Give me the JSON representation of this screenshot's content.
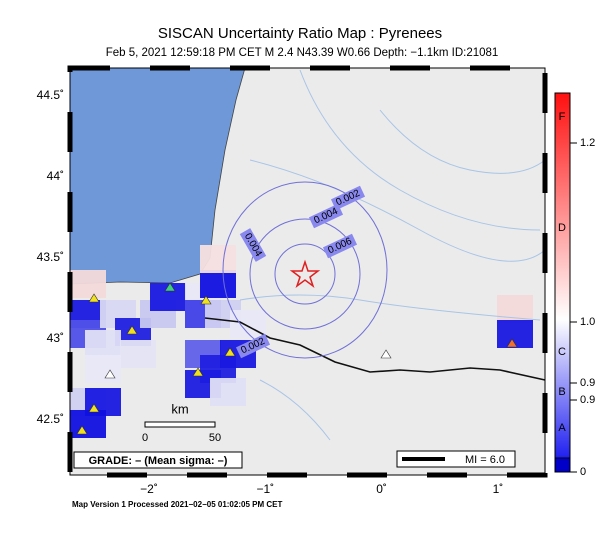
{
  "header": {
    "title": "SISCAN Uncertainty Ratio Map : Pyrenees",
    "subtitle": "Feb  5, 2021 12:59:18 PM CET   M 2.4   N43.39 W0.66   Depth: −1.1km   ID:21081"
  },
  "map": {
    "lat_ticks": [
      {
        "value": 44.5,
        "label": "44.5˚"
      },
      {
        "value": 44,
        "label": "44˚"
      },
      {
        "value": 43.5,
        "label": "43.5˚"
      },
      {
        "value": 43,
        "label": "43˚"
      },
      {
        "value": 42.5,
        "label": "42.5˚"
      }
    ],
    "lon_ticks": [
      {
        "value": -2,
        "label": "−2˚"
      },
      {
        "value": -1,
        "label": "−1˚"
      },
      {
        "value": 0,
        "label": "0˚"
      },
      {
        "value": 1,
        "label": "1˚"
      }
    ],
    "contour_labels": [
      "0.002",
      "0.004",
      "0.006",
      "0.004",
      "0.002"
    ],
    "scale": {
      "unit": "km",
      "start": "0",
      "end": "50"
    },
    "grade": "GRADE: – (Mean sigma: –)",
    "mi": "MI = 6.0"
  },
  "colorbar": {
    "grades": [
      "F",
      "D",
      "C",
      "B",
      "A"
    ],
    "values": [
      "1.2",
      "1.0",
      "0.9",
      "0.9",
      "0"
    ]
  },
  "footer": "Map Version 1 Processed 2021−02−05 01:02:05 PM CET"
}
